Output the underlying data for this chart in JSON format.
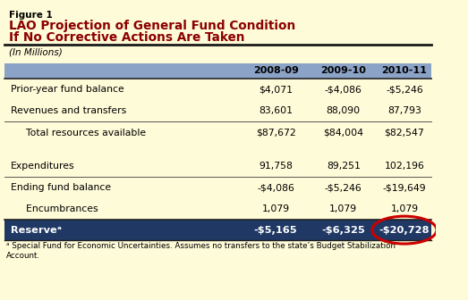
{
  "figure_label": "Figure 1",
  "title_line1": "LAO Projection of General Fund Condition",
  "title_line2": "If No Corrective Actions Are Taken",
  "subtitle": "(In Millions)",
  "bg_color": "#FEFBD8",
  "header_bg": "#8BA3C7",
  "reserve_bg": "#1F3864",
  "col_headers": [
    "",
    "2008-09",
    "2009-10",
    "2010-11"
  ],
  "rows": [
    {
      "label": "Prior-year fund balance",
      "vals": [
        "$4,071",
        "-$4,086",
        "-$5,246"
      ],
      "indent": false,
      "top_border": true,
      "bottom_border": false,
      "bold": false
    },
    {
      "label": "Revenues and transfers",
      "vals": [
        "83,601",
        "88,090",
        "87,793"
      ],
      "indent": false,
      "top_border": false,
      "bottom_border": true,
      "bold": false
    },
    {
      "label": "  Total resources available",
      "vals": [
        "$87,672",
        "$84,004",
        "$82,547"
      ],
      "indent": true,
      "top_border": false,
      "bottom_border": false,
      "bold": false
    },
    {
      "label": "",
      "vals": [
        "",
        "",
        ""
      ],
      "indent": false,
      "top_border": false,
      "bottom_border": false,
      "bold": false
    },
    {
      "label": "Expenditures",
      "vals": [
        "91,758",
        "89,251",
        "102,196"
      ],
      "indent": false,
      "top_border": false,
      "bottom_border": true,
      "bold": false
    },
    {
      "label": "Ending fund balance",
      "vals": [
        "-$4,086",
        "-$5,246",
        "-$19,649"
      ],
      "indent": false,
      "top_border": false,
      "bottom_border": false,
      "bold": false
    },
    {
      "label": "  Encumbrances",
      "vals": [
        "1,079",
        "1,079",
        "1,079"
      ],
      "indent": true,
      "top_border": false,
      "bottom_border": false,
      "bold": false
    }
  ],
  "reserve_row": {
    "label": "Reserveᵃ",
    "vals": [
      "-$5,165",
      "-$6,325",
      "-$20,728"
    ]
  },
  "footnote": "ᵃ Special Fund for Economic Uncertainties. Assumes no transfers to the state’s Budget Stabilization\nAccount.",
  "title_color": "#8B0000",
  "figure_label_color": "#000000",
  "text_color": "#000000",
  "header_text_color": "#000000",
  "reserve_text_color": "#FFFFFF",
  "circle_color": "#CC0000"
}
